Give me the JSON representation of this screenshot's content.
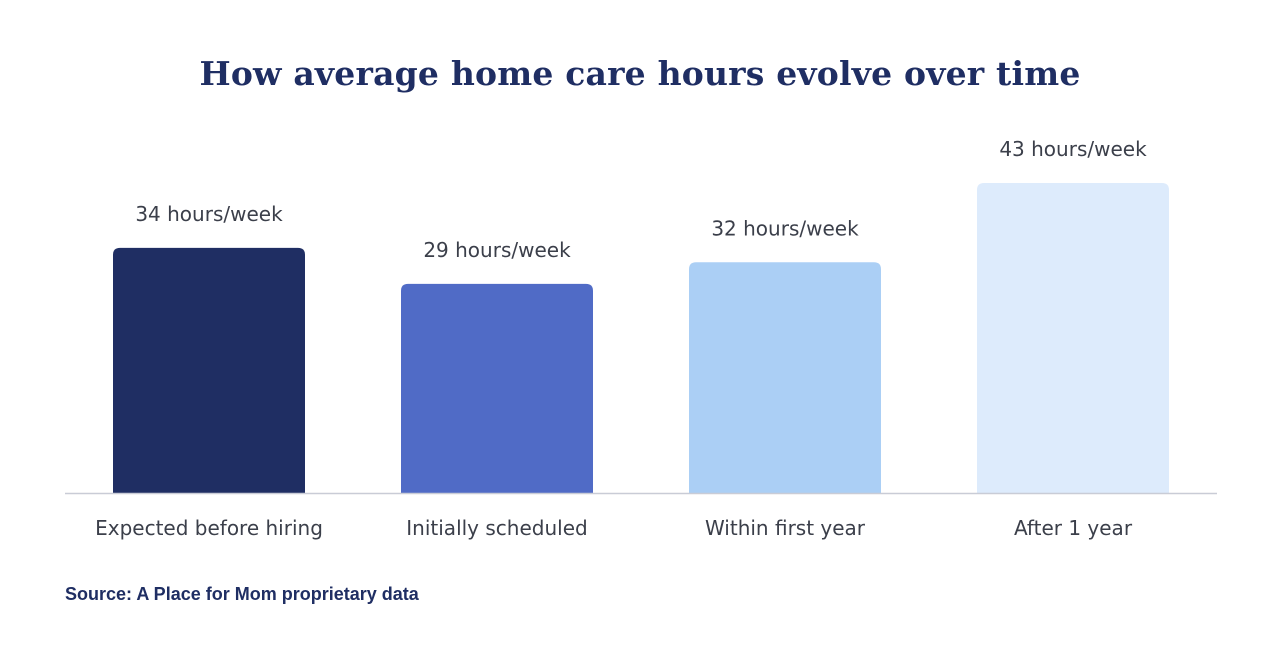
{
  "chart_data": {
    "type": "bar",
    "title": "How average home care hours evolve over time",
    "categories": [
      "Expected before hiring",
      "Initially scheduled",
      "Within first year",
      "After 1 year"
    ],
    "values": [
      34,
      29,
      32,
      43
    ],
    "data_labels": [
      "34 hours/week",
      "29 hours/week",
      "32 hours/week",
      "43 hours/week"
    ],
    "bar_colors": [
      "#1f2e63",
      "#506bc6",
      "#abcff5",
      "#ddebfc"
    ],
    "ylim": [
      0,
      43
    ],
    "xlabel": "",
    "ylabel": "",
    "grid": false,
    "legend": "none"
  },
  "source_note": "Source: A Place for Mom proprietary data",
  "colors": {
    "title": "#1f2e63",
    "label_text": "#3b3f4a",
    "axis_line": "#c9ccd6"
  }
}
